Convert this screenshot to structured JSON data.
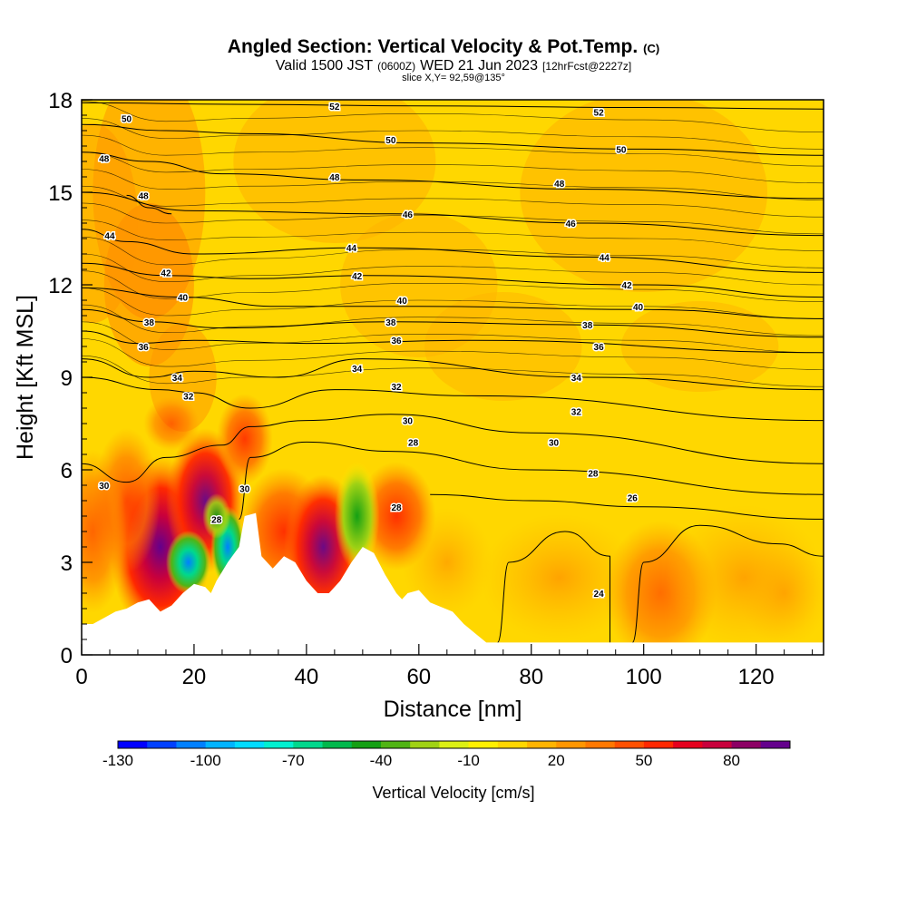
{
  "header": {
    "title": "Angled Section: Vertical Velocity & Pot.Temp.",
    "title_unit": "(C)",
    "valid_prefix": "Valid 1500 JST",
    "valid_utc": "(0600Z)",
    "valid_date": "WED 21 Jun 2023",
    "forecast": "[12hrFcst@2227z]",
    "slice": "slice X,Y= 92,59@135°"
  },
  "chart_data": {
    "type": "heatmap",
    "xlabel": "Distance [nm]",
    "ylabel": "Height [Kft MSL]",
    "xlim": [
      0,
      132
    ],
    "ylim": [
      0,
      18
    ],
    "x_ticks": [
      0,
      20,
      40,
      60,
      80,
      100,
      120
    ],
    "y_ticks": [
      0,
      3,
      6,
      9,
      12,
      15,
      18
    ],
    "colorbar": {
      "label": "Vertical Velocity [cm/s]",
      "tick_labels": [
        "-130",
        "-100",
        "-70",
        "-40",
        "-10",
        "20",
        "50",
        "80"
      ],
      "tick_values": [
        -130,
        -100,
        -70,
        -40,
        -10,
        20,
        50,
        80
      ],
      "levels": [
        -130,
        -120,
        -110,
        -100,
        -90,
        -80,
        -70,
        -60,
        -50,
        -40,
        -30,
        -20,
        -10,
        0,
        10,
        20,
        30,
        40,
        50,
        60,
        70,
        80,
        90
      ],
      "colors": [
        "#0000ff",
        "#0040ff",
        "#0080ff",
        "#00b4ff",
        "#00dcff",
        "#00f0d0",
        "#00d88c",
        "#00b84c",
        "#14a014",
        "#50b414",
        "#a0d214",
        "#dcf014",
        "#fff000",
        "#ffd700",
        "#ffb400",
        "#ff9600",
        "#ff7800",
        "#ff5000",
        "#ff2800",
        "#e6001e",
        "#c8003c",
        "#8c0064",
        "#64008c"
      ]
    },
    "terrain": [
      [
        0,
        1.0
      ],
      [
        2,
        1.0
      ],
      [
        4,
        1.2
      ],
      [
        6,
        1.4
      ],
      [
        8,
        1.5
      ],
      [
        10,
        1.7
      ],
      [
        12,
        1.8
      ],
      [
        14,
        1.4
      ],
      [
        16,
        1.6
      ],
      [
        18,
        2.0
      ],
      [
        20,
        2.3
      ],
      [
        22,
        2.2
      ],
      [
        23,
        2.0
      ],
      [
        24,
        2.4
      ],
      [
        26,
        3.0
      ],
      [
        28,
        3.5
      ],
      [
        29,
        4.5
      ],
      [
        31,
        4.6
      ],
      [
        32,
        3.2
      ],
      [
        34,
        2.8
      ],
      [
        36,
        3.2
      ],
      [
        38,
        3.0
      ],
      [
        40,
        2.4
      ],
      [
        42,
        2.0
      ],
      [
        44,
        2.0
      ],
      [
        46,
        2.4
      ],
      [
        48,
        3.0
      ],
      [
        50,
        3.5
      ],
      [
        52,
        3.3
      ],
      [
        54,
        2.6
      ],
      [
        56,
        2.0
      ],
      [
        57,
        1.8
      ],
      [
        58,
        2.0
      ],
      [
        60,
        2.1
      ],
      [
        62,
        1.7
      ],
      [
        66,
        1.4
      ],
      [
        68,
        1.0
      ],
      [
        70,
        0.7
      ],
      [
        72,
        0.4
      ],
      [
        132,
        0.4
      ]
    ],
    "theta_contours": [
      {
        "value": 52,
        "pts": [
          [
            0,
            17.9
          ],
          [
            30,
            17.85
          ],
          [
            60,
            17.8
          ],
          [
            100,
            17.75
          ],
          [
            132,
            17.7
          ]
        ],
        "label_pos": [
          [
            45,
            17.8
          ],
          [
            92,
            17.6
          ]
        ]
      },
      {
        "value": 50,
        "pts": [
          [
            0,
            17.2
          ],
          [
            15,
            17.0
          ],
          [
            30,
            16.9
          ],
          [
            60,
            16.6
          ],
          [
            100,
            16.4
          ],
          [
            132,
            16.2
          ]
        ],
        "label_pos": [
          [
            8,
            17.4
          ],
          [
            55,
            16.7
          ],
          [
            96,
            16.4
          ]
        ]
      },
      {
        "value": 48,
        "pts": [
          [
            0,
            16.3
          ],
          [
            12,
            16.0
          ],
          [
            25,
            15.6
          ],
          [
            50,
            15.4
          ],
          [
            90,
            15.1
          ],
          [
            132,
            14.8
          ]
        ],
        "label_pos": [
          [
            4,
            16.1
          ],
          [
            45,
            15.5
          ],
          [
            85,
            15.3
          ]
        ]
      },
      {
        "value": 48,
        "pts": [
          [
            8,
            14.9
          ],
          [
            12,
            14.5
          ],
          [
            16,
            14.3
          ]
        ],
        "label_pos": [
          [
            11,
            14.9
          ]
        ]
      },
      {
        "value": 46,
        "pts": [
          [
            0,
            15.0
          ],
          [
            20,
            14.4
          ],
          [
            55,
            14.3
          ],
          [
            90,
            14.0
          ],
          [
            132,
            13.6
          ]
        ],
        "label_pos": [
          [
            58,
            14.3
          ],
          [
            87,
            14.0
          ]
        ]
      },
      {
        "value": 44,
        "pts": [
          [
            0,
            13.8
          ],
          [
            8,
            13.4
          ],
          [
            20,
            13.0
          ],
          [
            50,
            13.2
          ],
          [
            90,
            12.9
          ],
          [
            132,
            12.4
          ]
        ],
        "label_pos": [
          [
            5,
            13.6
          ],
          [
            48,
            13.2
          ],
          [
            93,
            12.9
          ]
        ]
      },
      {
        "value": 42,
        "pts": [
          [
            0,
            12.7
          ],
          [
            15,
            12.3
          ],
          [
            30,
            12.2
          ],
          [
            50,
            12.3
          ],
          [
            100,
            12.0
          ],
          [
            132,
            11.6
          ]
        ],
        "label_pos": [
          [
            15,
            12.4
          ],
          [
            49,
            12.3
          ],
          [
            97,
            12.0
          ]
        ]
      },
      {
        "value": 40,
        "pts": [
          [
            0,
            11.9
          ],
          [
            18,
            11.6
          ],
          [
            35,
            11.3
          ],
          [
            60,
            11.3
          ],
          [
            100,
            11.2
          ],
          [
            132,
            10.9
          ]
        ],
        "label_pos": [
          [
            18,
            11.6
          ],
          [
            57,
            11.5
          ],
          [
            99,
            11.3
          ]
        ]
      },
      {
        "value": 38,
        "pts": [
          [
            0,
            11.2
          ],
          [
            12,
            10.8
          ],
          [
            25,
            10.6
          ],
          [
            55,
            10.8
          ],
          [
            90,
            10.7
          ],
          [
            132,
            10.3
          ]
        ],
        "label_pos": [
          [
            12,
            10.8
          ],
          [
            55,
            10.8
          ],
          [
            90,
            10.7
          ]
        ]
      },
      {
        "value": 36,
        "pts": [
          [
            0,
            10.5
          ],
          [
            10,
            10.1
          ],
          [
            20,
            10.2
          ],
          [
            40,
            10.1
          ],
          [
            70,
            10.2
          ],
          [
            132,
            9.8
          ]
        ],
        "label_pos": [
          [
            11,
            10.0
          ],
          [
            56,
            10.2
          ],
          [
            92,
            10.0
          ]
        ]
      },
      {
        "value": 34,
        "pts": [
          [
            0,
            9.6
          ],
          [
            12,
            9.0
          ],
          [
            20,
            9.2
          ],
          [
            35,
            9.0
          ],
          [
            50,
            9.6
          ],
          [
            90,
            9.0
          ],
          [
            132,
            8.6
          ]
        ],
        "label_pos": [
          [
            17,
            9.0
          ],
          [
            49,
            9.3
          ],
          [
            88,
            9.0
          ]
        ]
      },
      {
        "value": 32,
        "pts": [
          [
            0,
            9.0
          ],
          [
            14,
            8.6
          ],
          [
            20,
            8.5
          ],
          [
            30,
            8.0
          ],
          [
            45,
            8.6
          ],
          [
            70,
            8.4
          ],
          [
            132,
            7.6
          ]
        ],
        "label_pos": [
          [
            19,
            8.4
          ],
          [
            56,
            8.7
          ],
          [
            88,
            7.9
          ]
        ]
      },
      {
        "value": 30,
        "pts": [
          [
            0,
            6.2
          ],
          [
            8,
            5.6
          ],
          [
            15,
            6.4
          ],
          [
            25,
            6.8
          ],
          [
            30,
            7.4
          ],
          [
            40,
            7.6
          ],
          [
            55,
            7.8
          ],
          [
            80,
            7.2
          ],
          [
            132,
            6.2
          ]
        ],
        "label_pos": [
          [
            4,
            5.5
          ],
          [
            58,
            7.6
          ],
          [
            84,
            6.9
          ],
          [
            29,
            5.4
          ]
        ]
      },
      {
        "value": 28,
        "pts": [
          [
            28,
            4.4
          ],
          [
            30,
            6.4
          ],
          [
            40,
            6.9
          ],
          [
            55,
            6.6
          ],
          [
            80,
            6.0
          ],
          [
            132,
            5.2
          ]
        ],
        "label_pos": [
          [
            59,
            6.9
          ],
          [
            91,
            5.9
          ],
          [
            24,
            4.4
          ],
          [
            56,
            4.8
          ]
        ]
      },
      {
        "value": 26,
        "pts": [
          [
            62,
            5.2
          ],
          [
            80,
            5.0
          ],
          [
            100,
            4.8
          ],
          [
            132,
            4.4
          ]
        ],
        "label_pos": [
          [
            98,
            5.1
          ]
        ]
      },
      {
        "value": 24,
        "pts": [
          [
            74,
            0.4
          ],
          [
            76,
            3.0
          ],
          [
            86,
            4.0
          ],
          [
            94,
            3.2
          ],
          [
            94,
            0.4
          ]
        ],
        "label_pos": [
          [
            92,
            2.0
          ]
        ]
      },
      {
        "value": 24,
        "pts": [
          [
            98,
            0.4
          ],
          [
            100,
            3.0
          ],
          [
            110,
            4.2
          ],
          [
            124,
            3.6
          ],
          [
            132,
            3.2
          ]
        ],
        "label_pos": []
      }
    ]
  }
}
